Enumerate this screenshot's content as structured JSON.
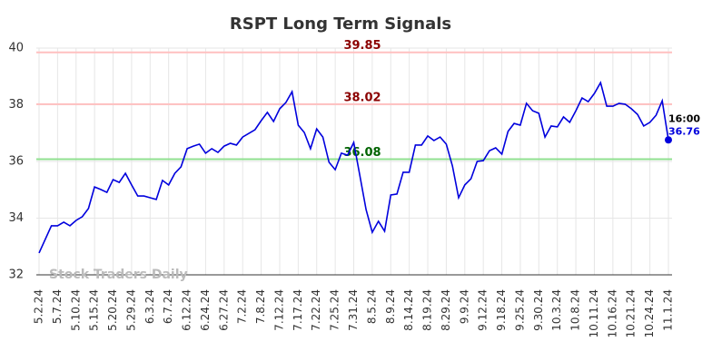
{
  "chart_data": {
    "type": "line",
    "title": "RSPT Long Term Signals",
    "categories": [
      "5.2.24",
      null,
      null,
      "5.7.24",
      null,
      null,
      "5.10.24",
      null,
      null,
      "5.15.24",
      null,
      null,
      "5.20.24",
      null,
      null,
      "5.29.24",
      null,
      null,
      "6.3.24",
      null,
      null,
      "6.7.24",
      null,
      null,
      "6.12.24",
      null,
      null,
      "6.24.24",
      null,
      null,
      "6.27.24",
      null,
      null,
      "7.2.24",
      null,
      null,
      "7.8.24",
      null,
      null,
      "7.12.24",
      null,
      null,
      "7.17.24",
      null,
      null,
      "7.22.24",
      null,
      null,
      "7.25.24",
      null,
      null,
      "7.31.24",
      null,
      null,
      "8.5.24",
      null,
      null,
      "8.9.24",
      null,
      null,
      "8.14.24",
      null,
      null,
      "8.19.24",
      null,
      null,
      "8.29.24",
      null,
      null,
      "9.9.24",
      null,
      null,
      "9.12.24",
      null,
      null,
      "9.18.24",
      null,
      null,
      "9.25.24",
      null,
      null,
      "9.30.24",
      null,
      null,
      "10.3.24",
      null,
      null,
      "10.8.24",
      null,
      null,
      "10.11.24",
      null,
      null,
      "10.16.24",
      null,
      null,
      "10.21.24",
      null,
      null,
      "10.24.24",
      null,
      null,
      "11.1.24"
    ],
    "values": [
      32.77,
      33.25,
      33.73,
      33.73,
      33.86,
      33.73,
      33.92,
      34.05,
      34.34,
      35.1,
      35.01,
      34.91,
      35.36,
      35.26,
      35.58,
      35.17,
      34.78,
      34.78,
      34.72,
      34.66,
      35.33,
      35.17,
      35.58,
      35.81,
      36.45,
      36.54,
      36.61,
      36.29,
      36.45,
      36.32,
      36.54,
      36.64,
      36.58,
      36.86,
      36.99,
      37.12,
      37.44,
      37.73,
      37.41,
      37.86,
      38.08,
      38.46,
      37.28,
      37.02,
      36.45,
      37.15,
      36.86,
      35.97,
      35.71,
      36.29,
      36.22,
      36.67,
      35.49,
      34.3,
      33.5,
      33.89,
      33.54,
      34.82,
      34.85,
      35.62,
      35.62,
      36.58,
      36.58,
      36.9,
      36.74,
      36.86,
      36.61,
      35.84,
      34.72,
      35.17,
      35.39,
      36.0,
      36.03,
      36.38,
      36.48,
      36.26,
      37.06,
      37.34,
      37.28,
      38.05,
      37.79,
      37.7,
      36.86,
      37.25,
      37.22,
      37.57,
      37.38,
      37.79,
      38.24,
      38.11,
      38.4,
      38.78,
      37.95,
      37.95,
      38.05,
      38.02,
      37.86,
      37.66,
      37.25,
      37.38,
      37.63,
      38.14,
      36.76
    ],
    "color": "#0000dd",
    "ylim": [
      32,
      40
    ],
    "yticks": [
      32,
      34,
      36,
      38,
      40
    ],
    "grid": true,
    "hlines": [
      {
        "value": 39.85,
        "color": "#ffc0c0",
        "label_color": "#8b0000"
      },
      {
        "value": 38.02,
        "color": "#ffc0c0",
        "label_color": "#8b0000"
      },
      {
        "value": 36.08,
        "color": "#90e090",
        "label_color": "#006400"
      }
    ],
    "last_time": "16:00",
    "watermark": "Stock Traders Daily"
  }
}
